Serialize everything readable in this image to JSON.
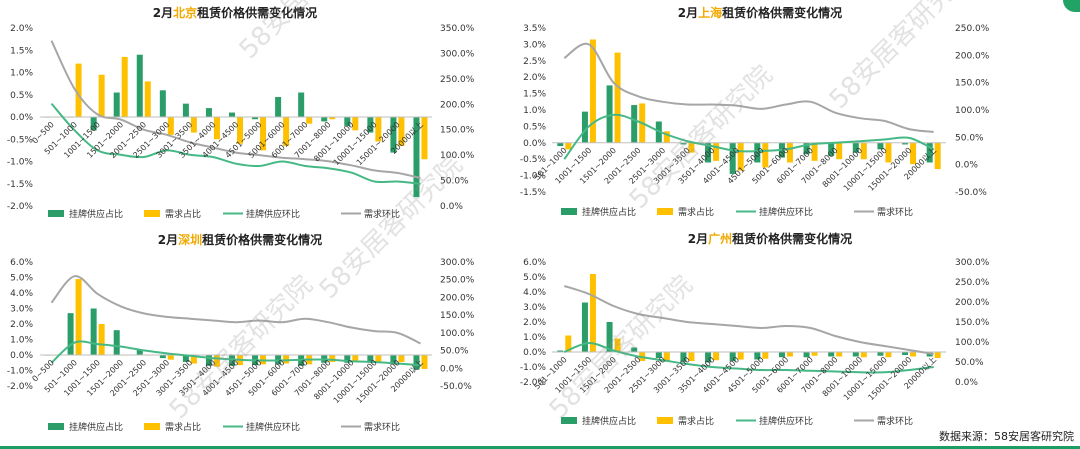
{
  "colors": {
    "supply_share": "#2a9d68",
    "demand_share": "#ffc000",
    "supply_mom": "#45b886",
    "demand_mom": "#a6a6a6"
  },
  "legend": {
    "supply_share": "挂牌供应占比",
    "demand_share": "需求占比",
    "supply_mom": "挂牌供应环比",
    "demand_mom": "需求环比"
  },
  "watermark": "58安居客研究院",
  "source": "数据来源：58安居客研究院",
  "chart_data": [
    {
      "type": "bar",
      "title_prefix": "2月",
      "city": "北京",
      "title_suffix": "租赁价格供需变化情况",
      "categories": [
        "0~500",
        "501~1000",
        "1001~1500",
        "1501~2000",
        "2001~2500",
        "2501~3000",
        "3001~3500",
        "3501~4000",
        "4001~4500",
        "4501~5000",
        "5001~6000",
        "6001~7000",
        "7001~8000",
        "8001~10000",
        "10001~15000",
        "15001~20000",
        "20000以上"
      ],
      "y_ticks": [
        "2.0%",
        "1.5%",
        "1.0%",
        "0.5%",
        "0.0%",
        "-0.5%",
        "-1.0%",
        "-1.5%",
        "-2.0%"
      ],
      "y2_ticks": [
        "350.0%",
        "300.0%",
        "250.0%",
        "200.0%",
        "150.0%",
        "100.0%",
        "50.0%",
        "0.0%"
      ],
      "ylim": [
        -2.0,
        2.0
      ],
      "y2lim": [
        0,
        350
      ],
      "series": [
        {
          "name": "挂牌供应占比",
          "kind": "bar",
          "axis": "left",
          "values": [
            0.0,
            0.0,
            -0.3,
            0.55,
            1.4,
            0.6,
            0.3,
            0.2,
            0.1,
            -0.05,
            0.45,
            0.55,
            -0.1,
            -0.2,
            -0.35,
            -0.8,
            -1.8
          ]
        },
        {
          "name": "需求占比",
          "kind": "bar",
          "axis": "left",
          "values": [
            0.0,
            1.2,
            0.95,
            1.35,
            0.8,
            -0.4,
            -0.35,
            -0.5,
            -0.6,
            -0.75,
            -0.65,
            -0.15,
            -0.05,
            -0.3,
            -0.55,
            -0.65,
            -0.95
          ]
        },
        {
          "name": "挂牌供应环比",
          "kind": "line",
          "axis": "left",
          "values": [
            0.3,
            -0.3,
            -0.75,
            -0.85,
            -0.9,
            -0.75,
            -0.85,
            -0.9,
            -1.05,
            -1.1,
            -1.0,
            -1.1,
            -1.15,
            -1.25,
            -1.45,
            -1.45,
            -1.5
          ]
        },
        {
          "name": "需求环比",
          "kind": "line",
          "axis": "right",
          "values": [
            325,
            230,
            180,
            170,
            150,
            140,
            125,
            115,
            105,
            100,
            95,
            92,
            88,
            80,
            70,
            65,
            55
          ]
        }
      ]
    },
    {
      "type": "bar",
      "title_prefix": "2月",
      "city": "上海",
      "title_suffix": "租赁价格供需变化情况",
      "categories": [
        "501~1000",
        "1001~1500",
        "1501~2000",
        "2001~2500",
        "2501~3000",
        "3001~3500",
        "3501~4000",
        "4001~4500",
        "4501~5000",
        "5001~6000",
        "6001~7000",
        "7001~8000",
        "8001~10000",
        "10001~15000",
        "15001~20000",
        "20000以上"
      ],
      "y_ticks": [
        "3.5%",
        "3.0%",
        "2.5%",
        "2.0%",
        "1.5%",
        "1.0%",
        "0.5%",
        "0.0%",
        "-0.5%",
        "-1.0%",
        "-1.5%"
      ],
      "y2_ticks": [
        "250.0%",
        "200.0%",
        "150.0%",
        "100.0%",
        "50.0%",
        "0.0%",
        "-50.0%"
      ],
      "ylim": [
        -1.5,
        3.5
      ],
      "y2lim": [
        -50,
        250
      ],
      "series": [
        {
          "name": "挂牌供应占比",
          "kind": "bar",
          "axis": "left",
          "values": [
            -0.1,
            0.95,
            1.75,
            1.15,
            0.65,
            -0.05,
            -0.6,
            -0.95,
            -0.6,
            -0.45,
            -0.35,
            -0.4,
            -0.3,
            -0.2,
            -0.05,
            -0.6
          ]
        },
        {
          "name": "需求占比",
          "kind": "bar",
          "axis": "left",
          "values": [
            -0.2,
            3.15,
            2.75,
            1.2,
            0.35,
            -0.3,
            -0.55,
            -0.85,
            -0.75,
            -0.6,
            -0.55,
            -0.5,
            -0.5,
            -0.6,
            -0.65,
            -0.8
          ]
        },
        {
          "name": "挂牌供应环比",
          "kind": "line",
          "axis": "left",
          "values": [
            -0.5,
            0.5,
            0.85,
            0.65,
            0.3,
            0.05,
            -0.1,
            -0.25,
            -0.25,
            -0.2,
            -0.05,
            0.0,
            0.05,
            0.1,
            0.15,
            -0.2
          ]
        },
        {
          "name": "需求环比",
          "kind": "line",
          "axis": "right",
          "values": [
            195,
            220,
            150,
            125,
            115,
            110,
            110,
            108,
            102,
            110,
            115,
            95,
            85,
            80,
            65,
            60
          ]
        }
      ]
    },
    {
      "type": "bar",
      "title_prefix": "2月",
      "city": "深圳",
      "title_suffix": "租赁价格供需变化情况",
      "categories": [
        "0~500",
        "501~1000",
        "1001~1500",
        "1501~2000",
        "2001~2500",
        "2501~3000",
        "3001~3500",
        "3501~4000",
        "4001~4500",
        "4501~5000",
        "5001~6000",
        "6001~7000",
        "7001~8000",
        "8001~10000",
        "10001~15000",
        "15001~20000",
        "20000以上"
      ],
      "y_ticks": [
        "6.0%",
        "5.0%",
        "4.0%",
        "3.0%",
        "2.0%",
        "1.0%",
        "0.0%",
        "-1.0%",
        "-2.0%"
      ],
      "y2_ticks": [
        "300.0%",
        "250.0%",
        "200.0%",
        "150.0%",
        "100.0%",
        "50.0%",
        "0.0%",
        "-50.0%"
      ],
      "ylim": [
        -2.0,
        6.0
      ],
      "y2lim": [
        -50,
        300
      ],
      "series": [
        {
          "name": "挂牌供应占比",
          "kind": "bar",
          "axis": "left",
          "values": [
            0.0,
            2.7,
            3.0,
            1.6,
            0.35,
            -0.2,
            -0.45,
            -0.7,
            -0.7,
            -0.65,
            -0.6,
            -0.7,
            -0.5,
            -0.5,
            -0.5,
            -0.5,
            -0.95
          ]
        },
        {
          "name": "需求占比",
          "kind": "bar",
          "axis": "left",
          "values": [
            0.0,
            4.9,
            2.0,
            0.0,
            0.0,
            -0.3,
            -0.55,
            -0.75,
            -0.65,
            -0.6,
            -0.55,
            -0.6,
            -0.45,
            -0.4,
            -0.45,
            -0.45,
            -0.9
          ]
        },
        {
          "name": "挂牌供应环比",
          "kind": "line",
          "axis": "left",
          "values": [
            -0.5,
            0.8,
            0.7,
            0.55,
            0.3,
            0.1,
            -0.05,
            -0.2,
            -0.3,
            -0.35,
            -0.35,
            -0.3,
            -0.3,
            -0.4,
            -0.45,
            -0.55,
            -0.65
          ]
        },
        {
          "name": "需求环比",
          "kind": "line",
          "axis": "right",
          "values": [
            185,
            260,
            210,
            175,
            155,
            145,
            140,
            135,
            130,
            135,
            130,
            140,
            130,
            115,
            105,
            100,
            70
          ]
        }
      ]
    },
    {
      "type": "bar",
      "title_prefix": "2月",
      "city": "广州",
      "title_suffix": "租赁价格供需变化情况",
      "categories": [
        "501~1000",
        "1001~1500",
        "1501~2000",
        "2001~2500",
        "2501~3000",
        "3001~3500",
        "3501~4000",
        "4001~4500",
        "4501~5000",
        "5001~6000",
        "6001~7000",
        "7001~8000",
        "8001~10000",
        "10001~15000",
        "15001~20000",
        "20000以上"
      ],
      "y_ticks": [
        "6.0%",
        "5.0%",
        "4.0%",
        "3.0%",
        "2.0%",
        "1.0%",
        "0.0%",
        "-1.0%",
        "-2.0%"
      ],
      "y2_ticks": [
        "300.0%",
        "250.0%",
        "200.0%",
        "150.0%",
        "100.0%",
        "50.0%",
        "0.0%"
      ],
      "ylim": [
        -2.0,
        6.0
      ],
      "y2lim": [
        0,
        300
      ],
      "series": [
        {
          "name": "挂牌供应占比",
          "kind": "bar",
          "axis": "left",
          "values": [
            0.1,
            3.3,
            2.0,
            0.3,
            -0.4,
            -0.65,
            -0.7,
            -0.6,
            -0.5,
            -0.35,
            -0.35,
            -0.3,
            -0.3,
            -0.25,
            -0.2,
            -0.3
          ]
        },
        {
          "name": "需求占比",
          "kind": "bar",
          "axis": "left",
          "values": [
            1.1,
            5.2,
            0.9,
            -0.6,
            -0.65,
            -0.6,
            -0.55,
            -0.5,
            -0.45,
            -0.3,
            -0.25,
            -0.3,
            -0.35,
            -0.35,
            -0.3,
            -0.4
          ]
        },
        {
          "name": "挂牌供应环比",
          "kind": "line",
          "axis": "left",
          "values": [
            0.0,
            0.6,
            0.1,
            -0.3,
            -0.55,
            -0.8,
            -1.0,
            -1.1,
            -1.2,
            -1.2,
            -1.25,
            -1.3,
            -1.35,
            -1.35,
            -1.2,
            -1.0
          ]
        },
        {
          "name": "需求环比",
          "kind": "line",
          "axis": "right",
          "values": [
            240,
            220,
            190,
            170,
            160,
            150,
            145,
            140,
            135,
            140,
            135,
            115,
            100,
            90,
            80,
            70
          ]
        }
      ]
    }
  ]
}
